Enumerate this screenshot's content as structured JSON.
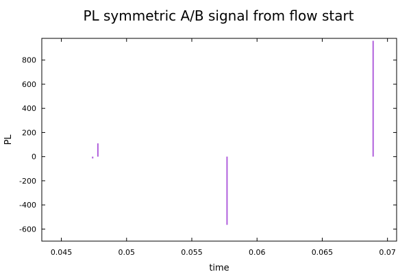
{
  "chart_data": {
    "type": "impulse",
    "title": "PL symmetric A/B signal from flow start",
    "xlabel": "time",
    "ylabel": "PL",
    "xlim": [
      0.0435,
      0.0707
    ],
    "ylim": [
      -700,
      980
    ],
    "x_ticks": [
      0.045,
      0.05,
      0.055,
      0.06,
      0.065,
      0.07
    ],
    "x_tick_labels": [
      "0.045",
      "0.05",
      "0.055",
      "0.06",
      "0.065",
      "0.07"
    ],
    "y_ticks": [
      -600,
      -400,
      -200,
      0,
      200,
      400,
      600,
      800
    ],
    "y_tick_labels": [
      "-600",
      "-400",
      "-200",
      "0",
      "200",
      "400",
      "600",
      "800"
    ],
    "grid": false,
    "series": [
      {
        "color": "#b05fdc",
        "points": [
          {
            "x": 0.0474,
            "y": -15
          },
          {
            "x": 0.0478,
            "y": 110
          },
          {
            "x": 0.0577,
            "y": -565
          },
          {
            "x": 0.0689,
            "y": 960
          }
        ]
      }
    ]
  }
}
